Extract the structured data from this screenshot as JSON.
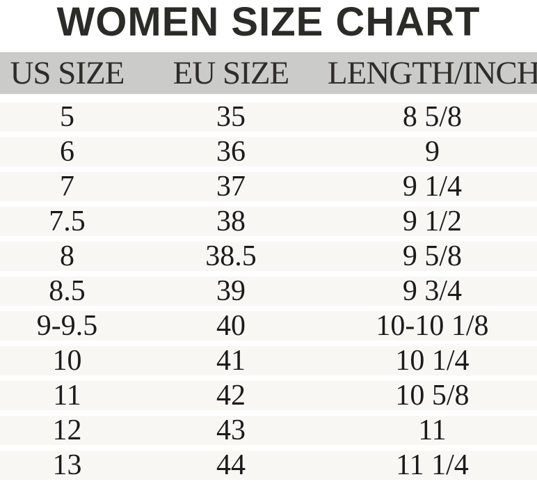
{
  "title": "WOMEN SIZE CHART",
  "colors": {
    "title_text": "#2b2b27",
    "header_bg": "#cbcbc9",
    "header_text": "#2e2d29",
    "row_bg": "#f8f7f4",
    "row_text": "#1c1b19",
    "separator": "#ffffff"
  },
  "chart_data": {
    "type": "table",
    "title": "WOMEN SIZE CHART",
    "columns": [
      "US SIZE",
      "EU SIZE",
      "LENGTH/INCH"
    ],
    "rows": [
      [
        "5",
        "35",
        "8 5/8"
      ],
      [
        "6",
        "36",
        "9"
      ],
      [
        "7",
        "37",
        "9 1/4"
      ],
      [
        "7.5",
        "38",
        "9 1/2"
      ],
      [
        "8",
        "38.5",
        "9 5/8"
      ],
      [
        "8.5",
        "39",
        "9 3/4"
      ],
      [
        "9-9.5",
        "40",
        "10-10 1/8"
      ],
      [
        "10",
        "41",
        "10 1/4"
      ],
      [
        "11",
        "42",
        "10 5/8"
      ],
      [
        "12",
        "43",
        "11"
      ],
      [
        "13",
        "44",
        "11 1/4"
      ]
    ]
  }
}
